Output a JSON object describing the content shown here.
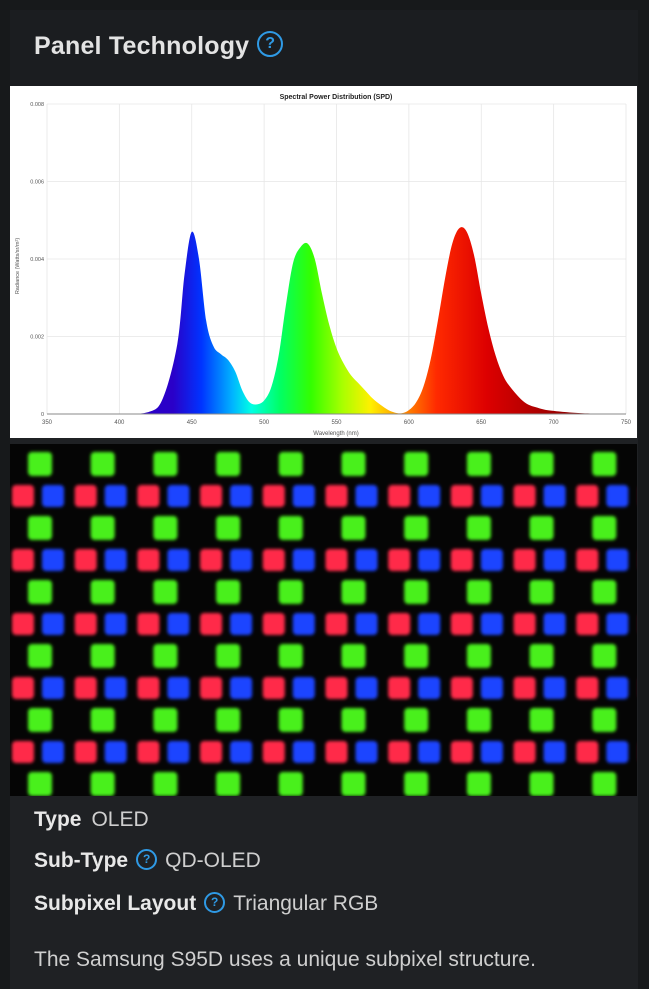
{
  "section": {
    "title": "Panel Technology",
    "help_glyph": "?"
  },
  "chart_data": {
    "type": "area",
    "title": "Spectral Power Distribution (SPD)",
    "xlabel": "Wavelength (nm)",
    "ylabel": "Radiance (Watts/sr/m²)",
    "xlim": [
      350,
      750
    ],
    "ylim": [
      0,
      0.008
    ],
    "x_ticks": [
      "350",
      "400",
      "450",
      "500",
      "550",
      "600",
      "650",
      "700",
      "750"
    ],
    "y_ticks": [
      "0",
      "0.002",
      "0.004",
      "0.006",
      "0.008"
    ],
    "grid": true,
    "series": [
      {
        "x": [
          350,
          400,
          420,
          430,
          440,
          445,
          450,
          455,
          460,
          465,
          470,
          475,
          480,
          485,
          490,
          495,
          500,
          505,
          510,
          515,
          520,
          525,
          530,
          535,
          540,
          545,
          550,
          555,
          560,
          565,
          570,
          575,
          580,
          585,
          590,
          595,
          600,
          605,
          610,
          615,
          620,
          625,
          630,
          635,
          640,
          645,
          650,
          655,
          660,
          665,
          670,
          680,
          690,
          700,
          720,
          750
        ],
        "y": [
          0,
          0,
          5e-05,
          0.0004,
          0.0018,
          0.0036,
          0.0047,
          0.004,
          0.0024,
          0.00175,
          0.00155,
          0.0014,
          0.0011,
          0.0006,
          0.0003,
          0.00025,
          0.00035,
          0.0007,
          0.0015,
          0.0028,
          0.0039,
          0.0043,
          0.0044,
          0.004,
          0.0031,
          0.0023,
          0.0017,
          0.0013,
          0.001,
          0.0008,
          0.0006,
          0.0004,
          0.00025,
          0.00012,
          4e-05,
          2e-05,
          0.0001,
          0.0003,
          0.0007,
          0.0014,
          0.0024,
          0.0035,
          0.0044,
          0.0048,
          0.0047,
          0.0041,
          0.0031,
          0.0022,
          0.0015,
          0.001,
          0.0007,
          0.0003,
          0.00015,
          8e-05,
          2e-05,
          0
        ]
      }
    ]
  },
  "subpixel_image": {
    "columns": 10,
    "colors": {
      "red": "#ff2a4a",
      "green": "#49f01f",
      "blue": "#1e45ff"
    }
  },
  "specs": {
    "type_label": "Type",
    "type_value": "OLED",
    "subtype_label": "Sub-Type",
    "subtype_value": "QD-OLED",
    "layout_label": "Subpixel Layout",
    "layout_value": "Triangular RGB"
  },
  "description": "The Samsung S95D uses a unique subpixel structure."
}
